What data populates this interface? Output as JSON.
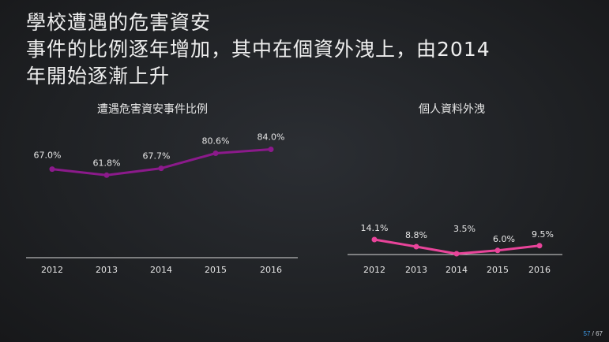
{
  "slide": {
    "title_lines": [
      "學校遭遇的危害資安",
      "事件的比例逐年增加，其中在個資外洩上，由2014",
      "年開始逐漸上升"
    ],
    "page_current": "57",
    "page_separator": " / ",
    "page_total": "67"
  },
  "colors": {
    "left_series": "#8b1a8b",
    "right_series": "#e8449a",
    "axis": "#d9d9d9"
  },
  "chart_data": [
    {
      "type": "line",
      "title": "遭遇危害資安事件比例",
      "categories": [
        "2012",
        "2013",
        "2014",
        "2015",
        "2016"
      ],
      "series": [
        {
          "values": [
            67.0,
            61.8,
            67.7,
            80.6,
            84.0
          ],
          "labels": [
            "67.0%",
            "61.8%",
            "67.7%",
            "80.6%",
            "84.0%"
          ]
        }
      ],
      "grid": false,
      "legend": "none"
    },
    {
      "type": "line",
      "title": "個人資料外洩",
      "categories": [
        "2012",
        "2013",
        "2014",
        "2015",
        "2016"
      ],
      "series": [
        {
          "values": [
            14.1,
            8.8,
            3.5,
            6.0,
            9.5
          ],
          "labels": [
            "14.1%",
            "8.8%",
            "3.5%",
            "6.0%",
            "9.5%"
          ]
        }
      ],
      "grid": false,
      "legend": "none"
    }
  ]
}
